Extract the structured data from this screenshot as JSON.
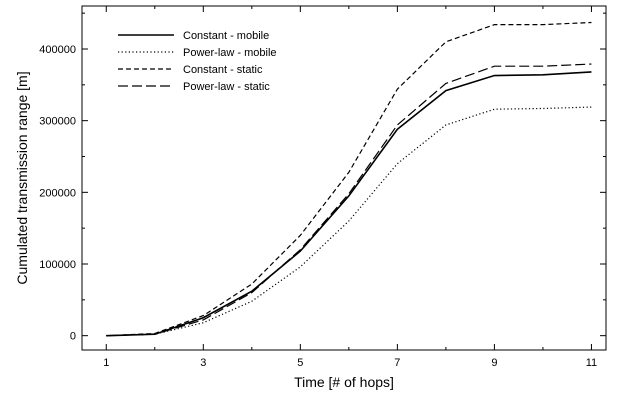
{
  "chart_data": {
    "type": "line",
    "title": "",
    "xlabel": "Time [# of hops]",
    "ylabel": "Cumulated transmission range [m]",
    "xlim": [
      0.5,
      11.3
    ],
    "ylim": [
      -20000,
      460000
    ],
    "x_ticks": [
      1,
      3,
      5,
      7,
      9,
      11
    ],
    "x_tick_labels": [
      "1",
      "3",
      "5",
      "7",
      "9",
      "11"
    ],
    "y_ticks": [
      0,
      100000,
      200000,
      300000,
      400000
    ],
    "y_tick_labels": [
      "0",
      "100000",
      "200000",
      "300000",
      "400000"
    ],
    "grid": false,
    "legend_position": "top-left",
    "x": [
      1,
      2,
      3,
      4,
      5,
      6,
      7,
      8,
      9,
      10,
      11
    ],
    "series": [
      {
        "name": "Constant - mobile",
        "dash": "solid",
        "values": [
          0,
          2000,
          25000,
          62000,
          118000,
          195000,
          288000,
          342000,
          363000,
          364000,
          368000
        ]
      },
      {
        "name": "Power-law - mobile",
        "dash": "dotted",
        "values": [
          0,
          2000,
          18000,
          48000,
          96000,
          160000,
          240000,
          294000,
          316000,
          317000,
          319000
        ]
      },
      {
        "name": "Constant - static",
        "dash": "dashed",
        "values": [
          0,
          3000,
          28000,
          72000,
          140000,
          228000,
          344000,
          410000,
          434000,
          434000,
          437000
        ]
      },
      {
        "name": "Power-law - static",
        "dash": "long-dashed",
        "values": [
          0,
          2000,
          22000,
          60000,
          120000,
          198000,
          294000,
          352000,
          376000,
          376000,
          379000
        ]
      }
    ]
  }
}
